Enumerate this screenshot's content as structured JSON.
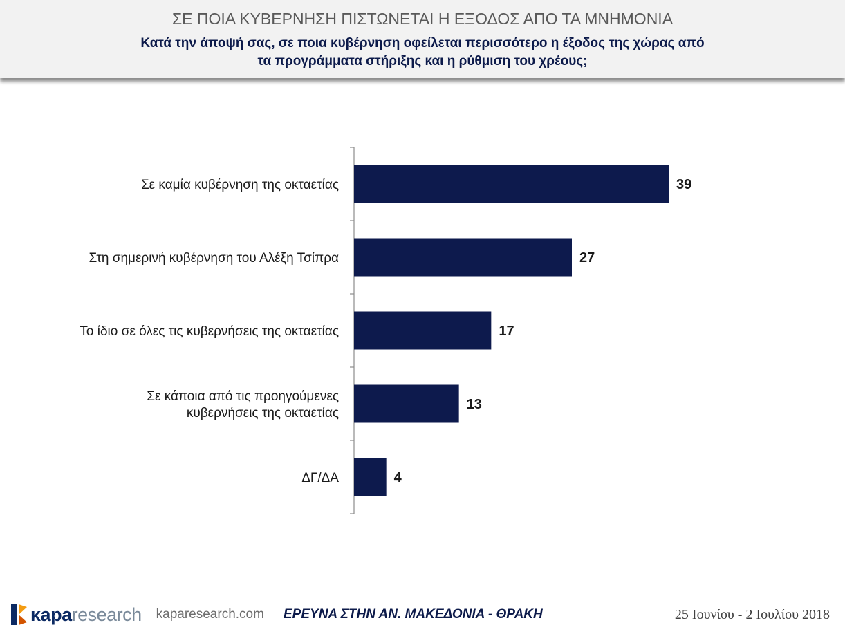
{
  "header": {
    "title": "ΣΕ ΠΟΙΑ ΚΥΒΕΡΝΗΣΗ ΠΙΣΤΩΝΕΤΑΙ Η ΕΞΟΔΟΣ ΑΠΟ ΤΑ ΜΝΗΜΟΝΙΑ",
    "subtitle_line1": "Κατά την άποψή σας, σε ποια κυβέρνηση οφείλεται περισσότερο η έξοδος της χώρας από",
    "subtitle_line2": "τα προγράμματα στήριξης και η ρύθμιση του χρέους;"
  },
  "chart_data": {
    "type": "bar",
    "orientation": "horizontal",
    "categories": [
      [
        "Σε καμία κυβέρνηση της οκταετίας"
      ],
      [
        "Στη σημερινή κυβέρνηση του Αλέξη Τσίπρα"
      ],
      [
        "Το ίδιο σε όλες τις κυβερνήσεις της οκταετίας"
      ],
      [
        "Σε κάποια από τις προηγούμενες",
        "κυβερνήσεις της οκταετίας"
      ],
      [
        "ΔΓ/ΔΑ"
      ]
    ],
    "values": [
      39,
      27,
      17,
      13,
      4
    ],
    "xlim": [
      0,
      45
    ],
    "bar_color": "#0d1a4d",
    "grid": false,
    "legend": "none"
  },
  "footer": {
    "brand_kapa": "κapa",
    "brand_research": "research",
    "url": "kaparesearch.com",
    "survey": "ΕΡΕΥΝΑ ΣΤΗΝ ΑΝ. ΜΑΚΕΔΟΝΙΑ - ΘΡΑΚΗ",
    "date": "25 Ιουνίου - 2 Ιουλίου 2018"
  }
}
